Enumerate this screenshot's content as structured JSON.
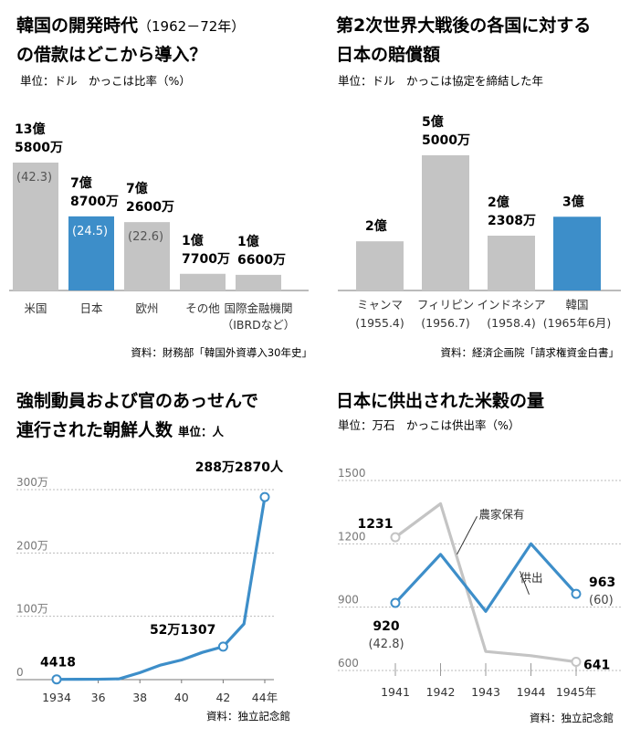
{
  "panels": {
    "p1": {
      "title_line1": "韓国の開発時代",
      "title_years": "（1962－72年）",
      "title_line2": "の借款はどこから導入？",
      "subtitle": "単位：ドル　かっこは比率（%）",
      "source": "資料：財務部「韓国外資導入30年史」"
    },
    "p2": {
      "title_line1": "第2次世界大戦後の各国に対する",
      "title_line2": "日本の賠償額",
      "subtitle": "単位：ドル　かっこは協定を締結した年",
      "source": "資料：経済企画院「請求権資金白書」"
    },
    "p3": {
      "title_line1": "強制動員および官のあっせんで",
      "title_line2": "連行された朝鮮人数",
      "unit": "単位：人",
      "source": "資料：独立記念館"
    },
    "p4": {
      "title": "日本に供出された米穀の量",
      "subtitle": "単位：万石　かっこは供出率（%）",
      "source": "資料：独立記念館"
    }
  },
  "chart_data": [
    {
      "id": "loans",
      "type": "bar",
      "title": "韓国の開発時代（1962－72年）の借款はどこから導入？",
      "categories": [
        "米国",
        "日本",
        "欧州",
        "その他",
        "国際金融機関"
      ],
      "category_sub": [
        "",
        "",
        "",
        "",
        "（IBRDなど）"
      ],
      "values": [
        1358000000,
        787000000,
        726000000,
        177000000,
        166000000
      ],
      "value_labels_l1": [
        "13億",
        "7億",
        "7億",
        "1億",
        "1億"
      ],
      "value_labels_l2": [
        "5800万",
        "8700万",
        "2600万",
        "7700万",
        "6600万"
      ],
      "ratio_labels": [
        "(42.3)",
        "(24.5)",
        "(22.6)",
        "",
        ""
      ],
      "highlight_index": 1,
      "colors": {
        "bar": "#c4c4c4",
        "highlight": "#3d8ec9"
      }
    },
    {
      "id": "reparations",
      "type": "bar",
      "title": "第2次世界大戦後の各国に対する日本の賠償額",
      "categories": [
        "ミャンマ",
        "フィリピン",
        "インドネシア",
        "韓国"
      ],
      "category_sub": [
        "(1955.4)",
        "(1956.7)",
        "(1958.4)",
        "(1965年6月)"
      ],
      "values": [
        200000000,
        550000000,
        223080000,
        300000000
      ],
      "value_labels_l1": [
        "2億",
        "5億",
        "2億",
        "3億"
      ],
      "value_labels_l2": [
        "",
        "5000万",
        "2308万",
        ""
      ],
      "highlight_index": 3,
      "colors": {
        "bar": "#c4c4c4",
        "highlight": "#3d8ec9"
      }
    },
    {
      "id": "mobilized",
      "type": "line",
      "title": "強制動員および官のあっせんで連行された朝鮮人数",
      "x": [
        1934,
        1935,
        1936,
        1937,
        1938,
        1939,
        1940,
        1941,
        1942,
        1943,
        1944
      ],
      "y": [
        4418,
        5000,
        6000,
        12000,
        110000,
        230000,
        310000,
        430000,
        521307,
        880000,
        2882870
      ],
      "x_ticks": [
        "1934",
        "36",
        "38",
        "40",
        "42",
        "44年"
      ],
      "x_tick_values": [
        1934,
        1936,
        1938,
        1940,
        1942,
        1944
      ],
      "y_ticks": [
        "0",
        "100万",
        "200万",
        "300万"
      ],
      "y_tick_values": [
        0,
        1000000,
        2000000,
        3000000
      ],
      "ylim": [
        0,
        3000000
      ],
      "marked_points": [
        {
          "x": 1934,
          "y": 4418,
          "label": "4418"
        },
        {
          "x": 1942,
          "y": 521307,
          "label": "52万1307"
        },
        {
          "x": 1944,
          "y": 2882870,
          "label": "288万2870人"
        }
      ],
      "colors": {
        "line": "#3d8ec9",
        "grid": "#bbbbbb"
      }
    },
    {
      "id": "rice",
      "type": "line",
      "title": "日本に供出された米穀の量",
      "x": [
        1941,
        1942,
        1943,
        1944,
        1945
      ],
      "x_ticks": [
        "1941",
        "1942",
        "1943",
        "1944",
        "1945年"
      ],
      "y_ticks": [
        "600",
        "900",
        "1200",
        "1500"
      ],
      "y_tick_values": [
        600,
        900,
        1200,
        1500
      ],
      "ylim": [
        600,
        1500
      ],
      "series": [
        {
          "name": "農家保有",
          "values": [
            1231,
            1390,
            690,
            670,
            641
          ],
          "color": "#c4c4c4"
        },
        {
          "name": "供出",
          "values": [
            920,
            1150,
            880,
            1200,
            963
          ],
          "color": "#3d8ec9"
        }
      ],
      "point_labels": [
        {
          "series": 0,
          "index": 0,
          "label": "1231",
          "sub": ""
        },
        {
          "series": 0,
          "index": 4,
          "label": "641",
          "sub": ""
        },
        {
          "series": 1,
          "index": 0,
          "label": "920",
          "sub": "(42.8)"
        },
        {
          "series": 1,
          "index": 4,
          "label": "963",
          "sub": "(60)"
        }
      ]
    }
  ]
}
